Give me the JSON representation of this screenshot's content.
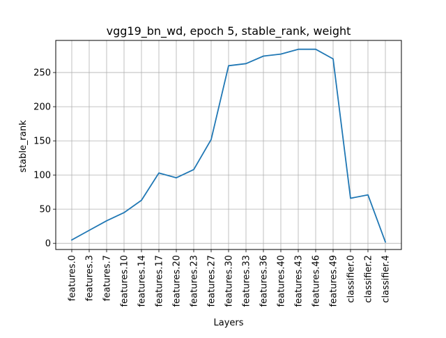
{
  "chart_data": {
    "type": "line",
    "title": "vgg19_bn_wd, epoch 5, stable_rank, weight",
    "xlabel": "Layers",
    "ylabel": "stable_rank",
    "categories": [
      "features.0",
      "features.3",
      "features.7",
      "features.10",
      "features.14",
      "features.17",
      "features.20",
      "features.23",
      "features.27",
      "features.30",
      "features.33",
      "features.36",
      "features.40",
      "features.43",
      "features.46",
      "features.49",
      "classifier.0",
      "classifier.2",
      "classifier.4"
    ],
    "series": [
      {
        "values": [
          5,
          19,
          33,
          45,
          63,
          103,
          96,
          108,
          152,
          260,
          263,
          274,
          277,
          284,
          284,
          270,
          66,
          71,
          2
        ]
      }
    ],
    "ylim": [
      -9,
      297
    ],
    "yticks": [
      0,
      50,
      100,
      150,
      200,
      250
    ],
    "grid": true,
    "line_color": "#1f77b4",
    "grid_color": "#b0b0b0"
  }
}
